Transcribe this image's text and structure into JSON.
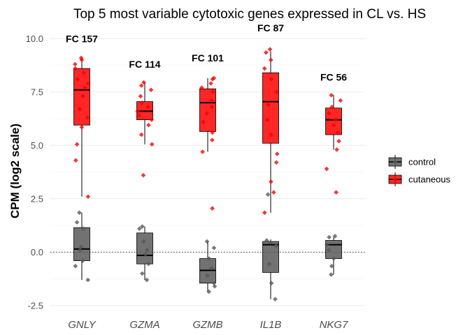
{
  "chart_data": {
    "type": "box",
    "title": "Top 5 most variable cytotoxic genes expressed in CL vs. HS",
    "xlabel": "",
    "ylabel": "CPM (log2 scale)",
    "ylim": [
      -2.8,
      10.5
    ],
    "yticks": [
      -2.5,
      0.0,
      2.5,
      5.0,
      7.5,
      10.0
    ],
    "ytick_labels": [
      "-2.5",
      "0.0",
      "2.5",
      "5.0",
      "7.5",
      "10.0"
    ],
    "reference_line_y": 0,
    "grid": true,
    "legend_position": "right",
    "categories": [
      "GNLY",
      "GZMA",
      "GZMB",
      "IL1B",
      "NKG7"
    ],
    "fold_change_labels": [
      {
        "gene": "GNLY",
        "label": "FC 157",
        "y": 10.0
      },
      {
        "gene": "GZMA",
        "label": "FC 114",
        "y": 8.8
      },
      {
        "gene": "GZMB",
        "label": "FC 101",
        "y": 9.1
      },
      {
        "gene": "IL1B",
        "label": "FC 87",
        "y": 10.5
      },
      {
        "gene": "NKG7",
        "label": "FC 56",
        "y": 8.2
      }
    ],
    "series": [
      {
        "name": "control",
        "color": "#595959",
        "boxes": [
          {
            "gene": "GNLY",
            "min": -1.3,
            "q1": -0.4,
            "median": 0.15,
            "q3": 1.15,
            "max": 1.85,
            "points": [
              -1.3,
              -0.65,
              -0.4,
              0.1,
              0.25,
              1.1,
              1.4,
              1.85
            ]
          },
          {
            "gene": "GZMA",
            "min": -1.3,
            "q1": -0.55,
            "median": -0.15,
            "q3": 0.9,
            "max": 1.2,
            "points": [
              -1.3,
              -1.0,
              -0.55,
              -0.1,
              0.1,
              0.5,
              1.1,
              1.2
            ]
          },
          {
            "gene": "GZMB",
            "min": -1.85,
            "q1": -1.45,
            "median": -0.85,
            "q3": -0.3,
            "max": 0.5,
            "points": [
              -1.85,
              -1.6,
              -1.45,
              -1.1,
              -0.75,
              -0.3,
              0.2,
              0.5
            ]
          },
          {
            "gene": "IL1B",
            "min": -2.2,
            "q1": -0.95,
            "median": 0.35,
            "q3": 0.5,
            "max": 0.6,
            "points": [
              -2.2,
              -1.45,
              -0.55,
              0.3,
              0.45,
              0.55,
              2.7
            ]
          },
          {
            "gene": "NKG7",
            "min": -1.05,
            "q1": -0.3,
            "median": 0.35,
            "q3": 0.55,
            "max": 0.7,
            "points": [
              -1.05,
              -0.65,
              -0.3,
              0.1,
              0.35,
              0.7,
              0.75
            ]
          }
        ]
      },
      {
        "name": "cutaneous",
        "color": "#ff0000",
        "boxes": [
          {
            "gene": "GNLY",
            "min": 2.6,
            "q1": 5.95,
            "median": 7.6,
            "q3": 8.6,
            "max": 9.1,
            "points": [
              2.6,
              4.3,
              5.05,
              5.85,
              6.3,
              6.7,
              7.3,
              7.7,
              7.9,
              8.1,
              8.4,
              8.6,
              8.8,
              9.0,
              9.1
            ]
          },
          {
            "gene": "GZMA",
            "min": 5.05,
            "q1": 6.2,
            "median": 6.6,
            "q3": 7.05,
            "max": 7.95,
            "points": [
              3.6,
              5.05,
              5.5,
              5.95,
              6.2,
              6.4,
              6.6,
              6.8,
              7.0,
              7.3,
              7.6,
              7.8,
              7.95
            ]
          },
          {
            "gene": "GZMB",
            "min": 4.7,
            "q1": 5.65,
            "median": 7.0,
            "q3": 7.65,
            "max": 8.15,
            "points": [
              2.05,
              4.7,
              5.25,
              5.6,
              6.1,
              6.5,
              6.8,
              7.1,
              7.5,
              7.7,
              7.9,
              8.1,
              8.15
            ]
          },
          {
            "gene": "IL1B",
            "min": 1.85,
            "q1": 5.1,
            "median": 7.05,
            "q3": 8.4,
            "max": 9.4,
            "points": [
              1.85,
              2.8,
              3.3,
              4.2,
              4.6,
              5.5,
              6.2,
              6.9,
              7.5,
              8.1,
              8.6,
              9.0,
              9.35,
              9.5
            ]
          },
          {
            "gene": "NKG7",
            "min": 4.8,
            "q1": 5.5,
            "median": 6.2,
            "q3": 6.75,
            "max": 7.35,
            "points": [
              2.8,
              3.9,
              4.8,
              5.2,
              5.6,
              5.95,
              6.2,
              6.5,
              6.8,
              7.1,
              7.35
            ]
          }
        ]
      }
    ]
  }
}
